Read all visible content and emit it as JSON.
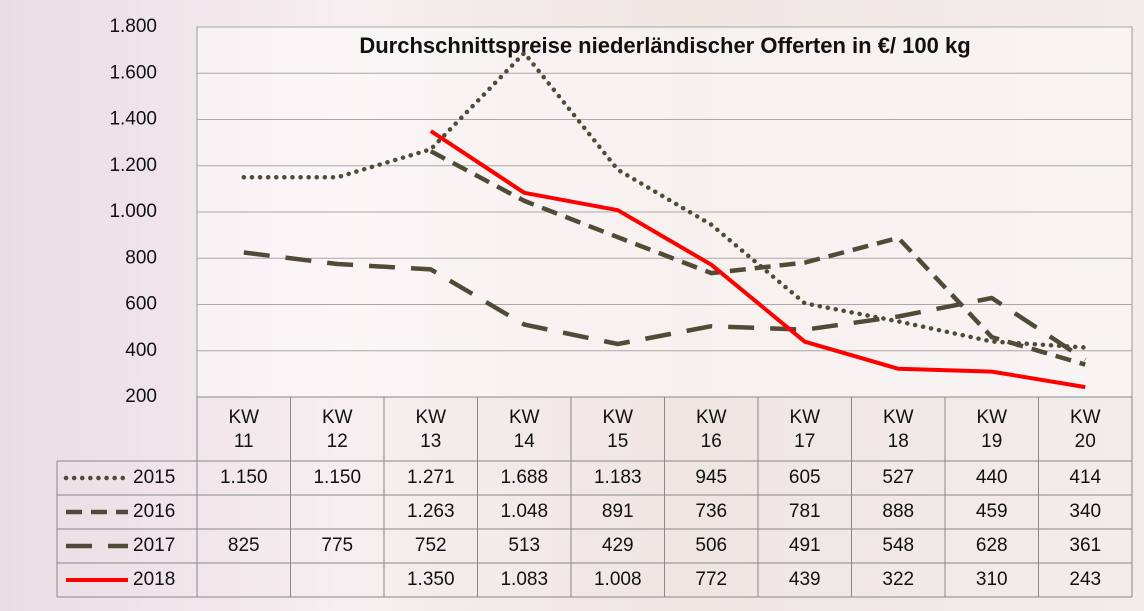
{
  "chart_data": {
    "type": "line",
    "title": "Durchschnittspreise niederländischer Offerten in €/ 100 kg",
    "categories": [
      "KW 11",
      "KW 12",
      "KW 13",
      "KW 14",
      "KW 15",
      "KW 16",
      "KW 17",
      "KW 18",
      "KW 19",
      "KW 20"
    ],
    "series": [
      {
        "name": "2015",
        "color": "#4f4b36",
        "style": "dotted",
        "values": [
          1150,
          1150,
          1271,
          1688,
          1183,
          945,
          605,
          527,
          440,
          414
        ],
        "value_labels": [
          "1.150",
          "1.150",
          "1.271",
          "1.688",
          "1.183",
          null,
          null,
          null,
          null,
          null
        ]
      },
      {
        "name": "2016",
        "color": "#4f4b36",
        "style": "dashed",
        "values": [
          null,
          null,
          1263,
          1048,
          891,
          736,
          781,
          888,
          459,
          340
        ],
        "value_labels": [
          null,
          null,
          "1.263",
          "1.048",
          null,
          null,
          null,
          null,
          null,
          null
        ]
      },
      {
        "name": "2017",
        "color": "#4f4b36",
        "style": "long-dashed",
        "values": [
          825,
          775,
          752,
          513,
          429,
          506,
          491,
          548,
          628,
          361
        ]
      },
      {
        "name": "2018",
        "color": "#ff0000",
        "style": "solid",
        "values": [
          null,
          null,
          1350,
          1083,
          1008,
          772,
          439,
          322,
          310,
          243
        ],
        "value_labels": [
          null,
          null,
          "1.350",
          "1.083",
          "1.008",
          null,
          null,
          null,
          null,
          null
        ]
      }
    ],
    "ylim": [
      200,
      1800
    ],
    "yticks": [
      200,
      400,
      600,
      800,
      {
        "value": 1000,
        "label": "1.000"
      },
      {
        "value": 1200,
        "label": "1.200"
      },
      {
        "value": 1400,
        "label": "1.400"
      },
      {
        "value": 1600,
        "label": "1.600"
      },
      {
        "value": 1800,
        "label": "1.800"
      }
    ],
    "grid": true,
    "data_table": true
  }
}
